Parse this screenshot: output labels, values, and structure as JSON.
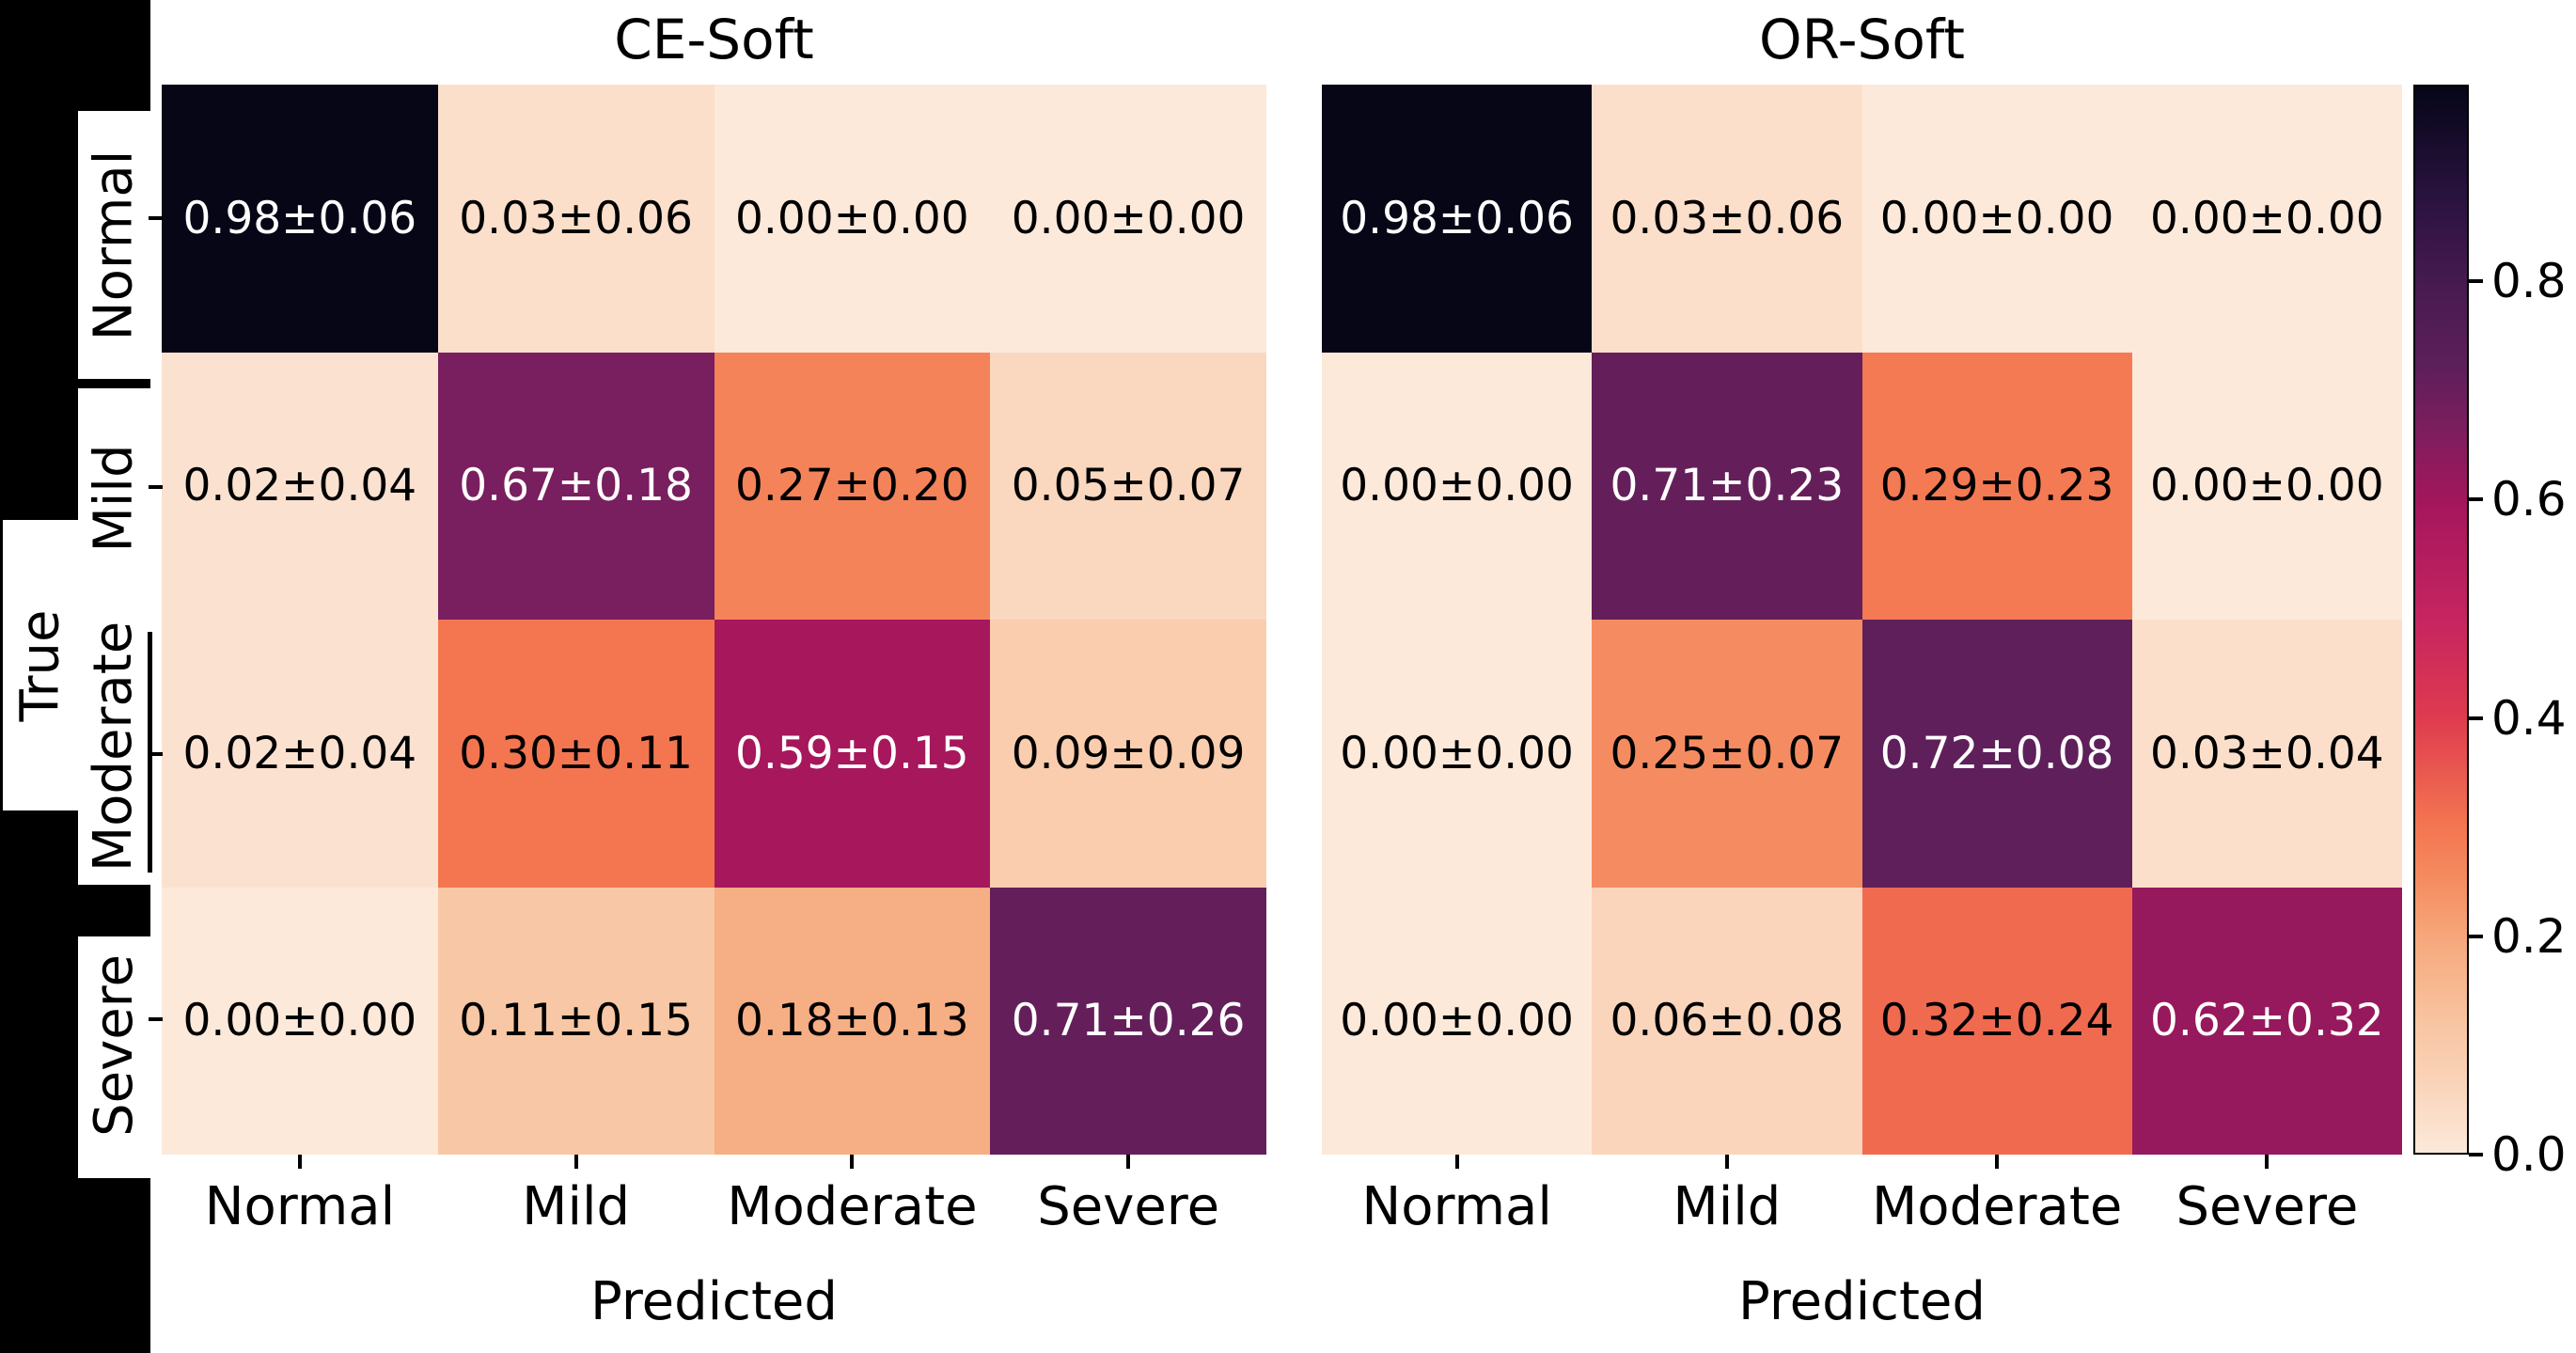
{
  "figure": {
    "background": "#ffffff",
    "left_strip_color": "#000000",
    "label_box_color": "#ffffff"
  },
  "chart_data": [
    {
      "type": "heatmap",
      "title": "CE-Soft",
      "xlabel": "Predicted",
      "ylabel": "True",
      "x_categories": [
        "Normal",
        "Mild",
        "Moderate",
        "Severe"
      ],
      "y_categories": [
        "Normal",
        "Mild",
        "Moderate",
        "Severe"
      ],
      "values": [
        [
          0.98,
          0.03,
          0.0,
          0.0
        ],
        [
          0.02,
          0.67,
          0.27,
          0.05
        ],
        [
          0.02,
          0.3,
          0.59,
          0.09
        ],
        [
          0.0,
          0.11,
          0.18,
          0.71
        ]
      ],
      "stds": [
        [
          0.06,
          0.06,
          0.0,
          0.0
        ],
        [
          0.04,
          0.18,
          0.2,
          0.07
        ],
        [
          0.04,
          0.11,
          0.15,
          0.09
        ],
        [
          0.0,
          0.15,
          0.13,
          0.26
        ]
      ],
      "labels": [
        [
          "0.98±0.06",
          "0.03±0.06",
          "0.00±0.00",
          "0.00±0.00"
        ],
        [
          "0.02±0.04",
          "0.67±0.18",
          "0.27±0.20",
          "0.05±0.07"
        ],
        [
          "0.02±0.04",
          "0.30±0.11",
          "0.59±0.15",
          "0.09±0.09"
        ],
        [
          "0.00±0.00",
          "0.11±0.15",
          "0.18±0.13",
          "0.71±0.26"
        ]
      ]
    },
    {
      "type": "heatmap",
      "title": "OR-Soft",
      "xlabel": "Predicted",
      "ylabel": "",
      "x_categories": [
        "Normal",
        "Mild",
        "Moderate",
        "Severe"
      ],
      "y_categories": [
        "Normal",
        "Mild",
        "Moderate",
        "Severe"
      ],
      "values": [
        [
          0.98,
          0.03,
          0.0,
          0.0
        ],
        [
          0.0,
          0.71,
          0.29,
          0.0
        ],
        [
          0.0,
          0.25,
          0.72,
          0.03
        ],
        [
          0.0,
          0.06,
          0.32,
          0.62
        ]
      ],
      "stds": [
        [
          0.06,
          0.06,
          0.0,
          0.0
        ],
        [
          0.0,
          0.23,
          0.23,
          0.0
        ],
        [
          0.0,
          0.07,
          0.08,
          0.04
        ],
        [
          0.0,
          0.08,
          0.24,
          0.32
        ]
      ],
      "labels": [
        [
          "0.98±0.06",
          "0.03±0.06",
          "0.00±0.00",
          "0.00±0.00"
        ],
        [
          "0.00±0.00",
          "0.71±0.23",
          "0.29±0.23",
          "0.00±0.00"
        ],
        [
          "0.00±0.00",
          "0.25±0.07",
          "0.72±0.08",
          "0.03±0.04"
        ],
        [
          "0.00±0.00",
          "0.06±0.08",
          "0.32±0.24",
          "0.62±0.32"
        ]
      ]
    }
  ],
  "colorbar": {
    "vmin": 0.0,
    "vmax": 0.98,
    "tick_labels": [
      "0.8",
      "0.6",
      "0.4",
      "0.2",
      "0.0"
    ],
    "tick_values": [
      0.8,
      0.6,
      0.4,
      0.2,
      0.0
    ]
  },
  "colormap": {
    "name": "rocket-like",
    "text_white_threshold": 0.5,
    "text_color_light": "#ffffff",
    "text_color_dark": "#000000",
    "stops": [
      {
        "t": 0.0,
        "color": "#FCE9DA"
      },
      {
        "t": 0.06,
        "color": "#FAD5BC"
      },
      {
        "t": 0.12,
        "color": "#F8C5A2"
      },
      {
        "t": 0.2,
        "color": "#F6A87C"
      },
      {
        "t": 0.26,
        "color": "#F58A5F"
      },
      {
        "t": 0.31,
        "color": "#F37450"
      },
      {
        "t": 0.41,
        "color": "#DE3A4F"
      },
      {
        "t": 0.5,
        "color": "#C62560"
      },
      {
        "t": 0.61,
        "color": "#A4165C"
      },
      {
        "t": 0.68,
        "color": "#7B1E5E"
      },
      {
        "t": 0.74,
        "color": "#5C1F5A"
      },
      {
        "t": 0.82,
        "color": "#451A4F"
      },
      {
        "t": 0.9,
        "color": "#28123E"
      },
      {
        "t": 1.0,
        "color": "#060617"
      }
    ]
  }
}
